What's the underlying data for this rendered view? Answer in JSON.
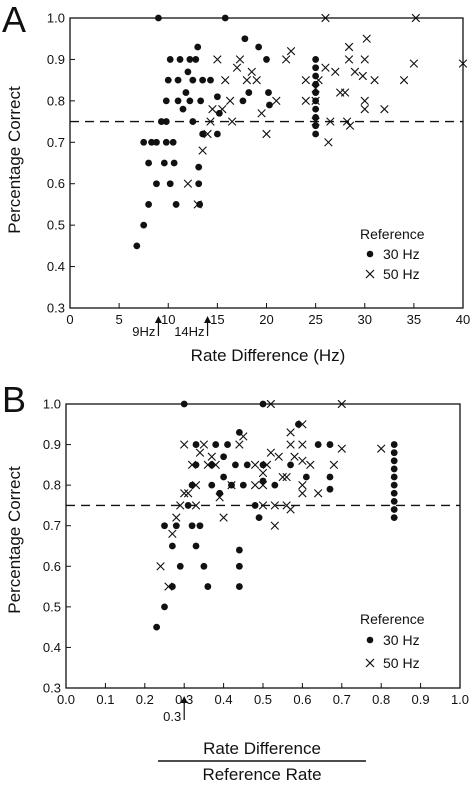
{
  "chart_data": [
    {
      "panel": "A",
      "type": "scatter",
      "xlabel": "Rate Difference (Hz)",
      "ylabel": "Percentage Correct",
      "xlim": [
        0,
        40
      ],
      "ylim": [
        0.3,
        1.0
      ],
      "xticks": [
        "0",
        "5",
        "10",
        "15",
        "20",
        "25",
        "30",
        "35",
        "40"
      ],
      "yticks": [
        "0.3",
        "0.4",
        "0.5",
        "0.6",
        "0.7",
        "0.8",
        "0.9",
        "1.0"
      ],
      "reference_line": 0.75,
      "legend": {
        "title": "Reference",
        "position": "right",
        "items": [
          "30 Hz",
          "50 Hz"
        ]
      },
      "annotations": [
        {
          "text": "9Hz",
          "x": 9
        },
        {
          "text": "14Hz",
          "x": 14
        }
      ],
      "series": [
        {
          "name": "30 Hz",
          "marker": "dot",
          "points": [
            [
              6.8,
              0.45
            ],
            [
              7.5,
              0.5
            ],
            [
              8,
              0.55
            ],
            [
              8,
              0.65
            ],
            [
              7.5,
              0.7
            ],
            [
              8.3,
              0.7
            ],
            [
              8.8,
              0.6
            ],
            [
              8.8,
              0.7
            ],
            [
              9.3,
              0.75
            ],
            [
              9,
              1.0
            ],
            [
              9.8,
              0.75
            ],
            [
              9.8,
              0.8
            ],
            [
              10,
              0.85
            ],
            [
              10.2,
              0.9
            ],
            [
              9.6,
              0.65
            ],
            [
              9.8,
              0.7
            ],
            [
              10.2,
              0.6
            ],
            [
              10.5,
              0.7
            ],
            [
              10.6,
              0.65
            ],
            [
              10.8,
              0.55
            ],
            [
              11,
              0.8
            ],
            [
              11,
              0.85
            ],
            [
              11.2,
              0.9
            ],
            [
              11.5,
              0.78
            ],
            [
              11.8,
              0.82
            ],
            [
              12,
              0.87
            ],
            [
              12.2,
              0.9
            ],
            [
              12.2,
              0.8
            ],
            [
              12.5,
              0.85
            ],
            [
              12.8,
              0.9
            ],
            [
              13,
              0.93
            ],
            [
              13.1,
              0.6
            ],
            [
              13.1,
              0.64
            ],
            [
              13.2,
              0.55
            ],
            [
              13.3,
              0.8
            ],
            [
              13.5,
              0.85
            ],
            [
              12.5,
              0.75
            ],
            [
              13.5,
              0.72
            ],
            [
              14.3,
              0.85
            ],
            [
              15,
              0.81
            ],
            [
              15.2,
              0.77
            ],
            [
              15,
              0.72
            ],
            [
              15.8,
              1.0
            ],
            [
              17.6,
              0.8
            ],
            [
              17.8,
              0.95
            ],
            [
              18.2,
              0.82
            ],
            [
              19.2,
              0.93
            ],
            [
              20,
              0.9
            ],
            [
              20.2,
              0.82
            ],
            [
              20.3,
              0.79
            ],
            [
              25,
              0.72
            ],
            [
              25,
              0.74
            ],
            [
              25,
              0.76
            ],
            [
              25,
              0.78
            ],
            [
              25,
              0.8
            ],
            [
              25,
              0.82
            ],
            [
              25,
              0.84
            ],
            [
              25,
              0.86
            ],
            [
              25,
              0.88
            ],
            [
              25,
              0.9
            ]
          ]
        },
        {
          "name": "50 Hz",
          "marker": "x",
          "points": [
            [
              12,
              0.6
            ],
            [
              13,
              0.55
            ],
            [
              13.5,
              0.68
            ],
            [
              14,
              0.72
            ],
            [
              14.3,
              0.75
            ],
            [
              14.5,
              0.78
            ],
            [
              15,
              0.9
            ],
            [
              15.5,
              0.78
            ],
            [
              15.8,
              0.85
            ],
            [
              16.3,
              0.8
            ],
            [
              16.5,
              0.75
            ],
            [
              17,
              0.88
            ],
            [
              17.3,
              0.9
            ],
            [
              18,
              0.85
            ],
            [
              18.5,
              0.87
            ],
            [
              19,
              0.85
            ],
            [
              19.5,
              0.77
            ],
            [
              20,
              0.72
            ],
            [
              21,
              0.8
            ],
            [
              22,
              0.9
            ],
            [
              22.5,
              0.92
            ],
            [
              24,
              0.8
            ],
            [
              24,
              0.85
            ],
            [
              25,
              0.75
            ],
            [
              25,
              0.8
            ],
            [
              25,
              0.83
            ],
            [
              25.3,
              0.85
            ],
            [
              26,
              0.88
            ],
            [
              26.3,
              0.7
            ],
            [
              26.5,
              0.75
            ],
            [
              26,
              1.0
            ],
            [
              27,
              0.87
            ],
            [
              28,
              0.82
            ],
            [
              28.4,
              0.9
            ],
            [
              28.4,
              0.93
            ],
            [
              28.5,
              0.74
            ],
            [
              29,
              0.87
            ],
            [
              30,
              0.78
            ],
            [
              30,
              0.8
            ],
            [
              30,
              0.9
            ],
            [
              30.2,
              0.95
            ],
            [
              31,
              0.85
            ],
            [
              32,
              0.78
            ],
            [
              34,
              0.85
            ],
            [
              35.2,
              1.0
            ],
            [
              35,
              0.89
            ],
            [
              40,
              0.89
            ],
            [
              28.2,
              0.75
            ],
            [
              29.8,
              0.86
            ],
            [
              27.5,
              0.82
            ]
          ]
        }
      ]
    },
    {
      "panel": "B",
      "type": "scatter",
      "xlabel_numerator": "Rate Difference",
      "xlabel_denominator": "Reference Rate",
      "ylabel": "Percentage Correct",
      "xlim": [
        0.0,
        1.0
      ],
      "ylim": [
        0.3,
        1.0
      ],
      "xticks": [
        "0.0",
        "0.1",
        "0.2",
        "0.3",
        "0.4",
        "0.5",
        "0.6",
        "0.7",
        "0.8",
        "0.9",
        "1.0"
      ],
      "yticks": [
        "0.3",
        "0.4",
        "0.5",
        "0.6",
        "0.7",
        "0.8",
        "0.9",
        "1.0"
      ],
      "reference_line": 0.75,
      "legend": {
        "title": "Reference",
        "position": "right",
        "items": [
          "30 Hz",
          "50 Hz"
        ]
      },
      "annotations": [
        {
          "text": "0.3",
          "x": 0.3
        }
      ],
      "series": [
        {
          "name": "30 Hz",
          "marker": "dot",
          "points": [
            [
              0.23,
              0.45
            ],
            [
              0.25,
              0.5
            ],
            [
              0.27,
              0.55
            ],
            [
              0.27,
              0.65
            ],
            [
              0.25,
              0.7
            ],
            [
              0.28,
              0.7
            ],
            [
              0.29,
              0.6
            ],
            [
              0.3,
              1.0
            ],
            [
              0.31,
              0.75
            ],
            [
              0.32,
              0.8
            ],
            [
              0.33,
              0.85
            ],
            [
              0.33,
              0.9
            ],
            [
              0.32,
              0.7
            ],
            [
              0.33,
              0.65
            ],
            [
              0.34,
              0.7
            ],
            [
              0.35,
              0.6
            ],
            [
              0.36,
              0.55
            ],
            [
              0.37,
              0.8
            ],
            [
              0.37,
              0.85
            ],
            [
              0.38,
              0.9
            ],
            [
              0.39,
              0.78
            ],
            [
              0.4,
              0.82
            ],
            [
              0.4,
              0.87
            ],
            [
              0.41,
              0.9
            ],
            [
              0.42,
              0.8
            ],
            [
              0.43,
              0.85
            ],
            [
              0.44,
              0.93
            ],
            [
              0.44,
              0.6
            ],
            [
              0.44,
              0.64
            ],
            [
              0.44,
              0.55
            ],
            [
              0.45,
              0.8
            ],
            [
              0.46,
              0.85
            ],
            [
              0.48,
              0.75
            ],
            [
              0.49,
              0.72
            ],
            [
              0.5,
              0.85
            ],
            [
              0.5,
              1.0
            ],
            [
              0.5,
              0.81
            ],
            [
              0.53,
              0.8
            ],
            [
              0.57,
              0.85
            ],
            [
              0.59,
              0.95
            ],
            [
              0.61,
              0.82
            ],
            [
              0.64,
              0.9
            ],
            [
              0.67,
              0.9
            ],
            [
              0.67,
              0.82
            ],
            [
              0.67,
              0.79
            ],
            [
              0.833,
              0.72
            ],
            [
              0.833,
              0.74
            ],
            [
              0.833,
              0.76
            ],
            [
              0.833,
              0.78
            ],
            [
              0.833,
              0.8
            ],
            [
              0.833,
              0.82
            ],
            [
              0.833,
              0.84
            ],
            [
              0.833,
              0.86
            ],
            [
              0.833,
              0.88
            ],
            [
              0.833,
              0.9
            ]
          ]
        },
        {
          "name": "50 Hz",
          "marker": "x",
          "points": [
            [
              0.24,
              0.6
            ],
            [
              0.26,
              0.55
            ],
            [
              0.27,
              0.68
            ],
            [
              0.28,
              0.72
            ],
            [
              0.29,
              0.75
            ],
            [
              0.3,
              0.78
            ],
            [
              0.3,
              0.9
            ],
            [
              0.31,
              0.78
            ],
            [
              0.32,
              0.85
            ],
            [
              0.33,
              0.8
            ],
            [
              0.33,
              0.75
            ],
            [
              0.34,
              0.88
            ],
            [
              0.35,
              0.9
            ],
            [
              0.36,
              0.85
            ],
            [
              0.37,
              0.87
            ],
            [
              0.38,
              0.85
            ],
            [
              0.39,
              0.77
            ],
            [
              0.4,
              0.72
            ],
            [
              0.42,
              0.8
            ],
            [
              0.44,
              0.9
            ],
            [
              0.45,
              0.92
            ],
            [
              0.48,
              0.8
            ],
            [
              0.48,
              0.85
            ],
            [
              0.5,
              0.75
            ],
            [
              0.5,
              0.8
            ],
            [
              0.5,
              0.83
            ],
            [
              0.51,
              0.85
            ],
            [
              0.52,
              0.88
            ],
            [
              0.53,
              0.7
            ],
            [
              0.53,
              0.75
            ],
            [
              0.52,
              1.0
            ],
            [
              0.54,
              0.87
            ],
            [
              0.56,
              0.82
            ],
            [
              0.57,
              0.9
            ],
            [
              0.57,
              0.93
            ],
            [
              0.57,
              0.74
            ],
            [
              0.58,
              0.87
            ],
            [
              0.6,
              0.78
            ],
            [
              0.6,
              0.8
            ],
            [
              0.6,
              0.9
            ],
            [
              0.6,
              0.95
            ],
            [
              0.62,
              0.85
            ],
            [
              0.64,
              0.78
            ],
            [
              0.68,
              0.85
            ],
            [
              0.7,
              1.0
            ],
            [
              0.7,
              0.89
            ],
            [
              0.8,
              0.89
            ],
            [
              0.56,
              0.75
            ],
            [
              0.6,
              0.86
            ],
            [
              0.55,
              0.82
            ]
          ]
        }
      ]
    }
  ],
  "colors": {
    "ink": "#111111",
    "background": "#ffffff"
  }
}
